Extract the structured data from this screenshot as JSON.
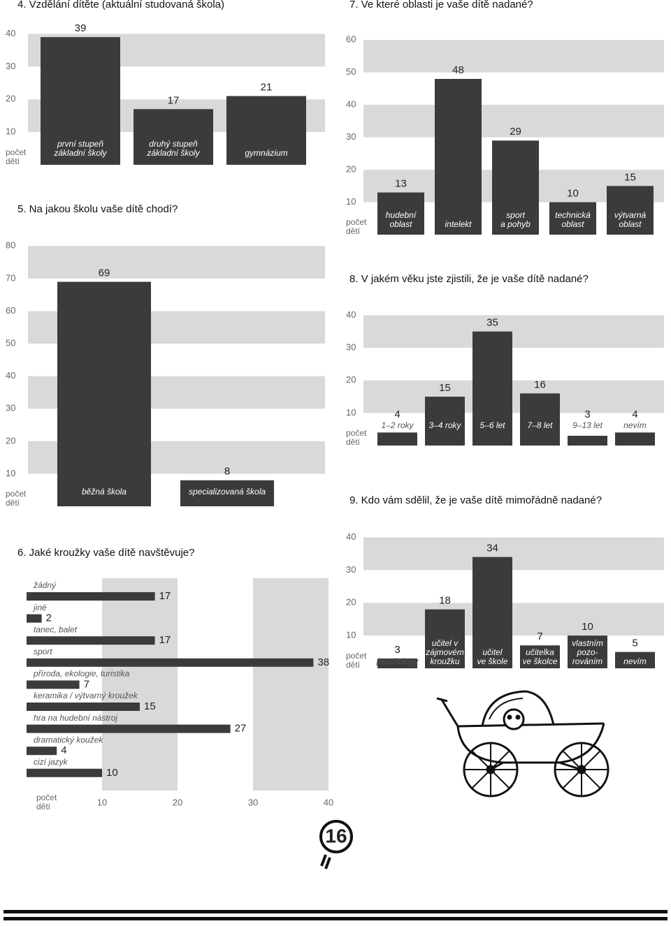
{
  "chart_data": [
    {
      "type": "bar",
      "title": "4. Vzdělání dítěte (aktuální studovaná škola)",
      "y_label": "počet\ndětí",
      "categories": [
        "první stupeň\nzákladní školy",
        "druhý stupeň\nzákladní školy",
        "gymnázium"
      ],
      "values": [
        39,
        17,
        21
      ],
      "ylim": [
        0,
        45
      ],
      "yticks": [
        10,
        20,
        30,
        40
      ],
      "color": "#3b3b3b",
      "band_color": "#d9d9d9"
    },
    {
      "type": "bar",
      "title": "5. Na jakou školu vaše dítě chodí?",
      "y_label": "počet\ndětí",
      "categories": [
        "běžná škola",
        "specializovaná škola"
      ],
      "values": [
        69,
        8
      ],
      "ylim": [
        0,
        85
      ],
      "yticks": [
        10,
        20,
        30,
        40,
        50,
        60,
        70,
        80
      ],
      "color": "#3b3b3b",
      "band_color": "#d9d9d9"
    },
    {
      "type": "barh",
      "title": "6. Jaké kroužky vaše dítě navštěvuje?",
      "x_label": "počet\ndětí",
      "categories": [
        "žádný",
        "jiné",
        "tanec, balet",
        "sport",
        "příroda, ekologie, turistika",
        "keramika / výtvarný kroužek",
        "hra na hudební nástroj",
        "dramatický koužek",
        "cizí jazyk"
      ],
      "values": [
        17,
        2,
        17,
        38,
        7,
        15,
        27,
        4,
        10
      ],
      "xlim": [
        0,
        40
      ],
      "xticks": [
        10,
        20,
        30,
        40
      ],
      "color": "#3b3b3b",
      "band_color": "#d9d9d9"
    },
    {
      "type": "bar",
      "title": "7. Ve které oblasti je vaše dítě nadané?",
      "y_label": "počet\ndětí",
      "categories": [
        "hudební\noblast",
        "intelekt",
        "sport\na pohyb",
        "technická\noblast",
        "výtvarná\noblast"
      ],
      "values": [
        13,
        48,
        29,
        10,
        15
      ],
      "ylim": [
        0,
        65
      ],
      "yticks": [
        10,
        20,
        30,
        40,
        50,
        60
      ],
      "color": "#3b3b3b",
      "band_color": "#d9d9d9"
    },
    {
      "type": "bar",
      "title": "8. V jakém věku jste zjistili, že je vaše dítě nadané?",
      "y_label": "počet\ndětí",
      "categories": [
        "1–2 roky",
        "3–4 roky",
        "5–6 let",
        "7–8 let",
        "9–13 let",
        "nevím"
      ],
      "values": [
        4,
        15,
        35,
        16,
        3,
        4
      ],
      "ylim": [
        0,
        45
      ],
      "yticks": [
        10,
        20,
        30,
        40
      ],
      "color": "#3b3b3b",
      "band_color": "#d9d9d9"
    },
    {
      "type": "bar",
      "title": "9. Kdo vám sdělil, že je vaše dítě mimořádně nadané?",
      "y_label": "počet\ndětí",
      "categories": [
        "psychology",
        "učitel v\nzájmovém\nkroužku",
        "učitel\nve škole",
        "učitelka\nve školce",
        "vlastním\npozo-\nrováním",
        "nevím"
      ],
      "values": [
        3,
        18,
        34,
        7,
        10,
        5
      ],
      "ylim": [
        0,
        45
      ],
      "yticks": [
        10,
        20,
        30,
        40
      ],
      "color": "#3b3b3b",
      "band_color": "#d9d9d9"
    }
  ],
  "page_number": 16
}
